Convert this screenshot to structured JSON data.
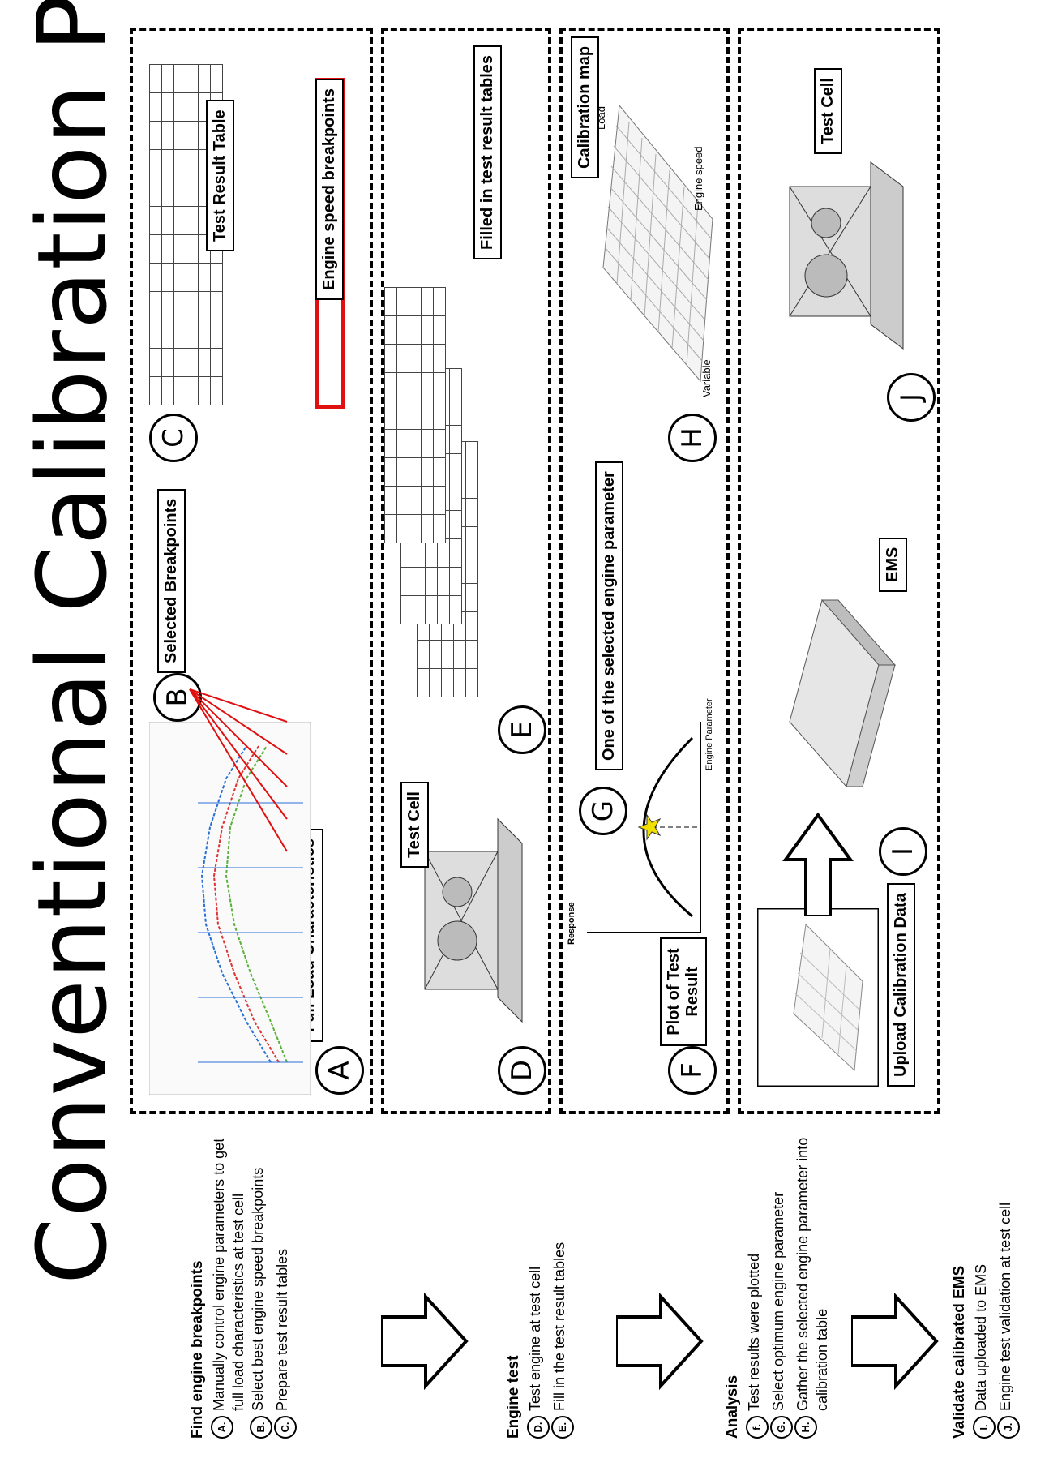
{
  "title": "Conventional Calibration Process",
  "steps": [
    {
      "heading": "Find engine  breakpoints",
      "items": [
        {
          "marker": "A.",
          "text": "Manually control engine parameters to get full load characteristics at test cell"
        },
        {
          "marker": "B.",
          "text": "Select best engine speed breakpoints"
        },
        {
          "marker": "C.",
          "text": "Prepare test result tables"
        }
      ]
    },
    {
      "heading": "Engine test",
      "items": [
        {
          "marker": "D.",
          "text": "Test engine at test cell"
        },
        {
          "marker": "E.",
          "text": "Fill in the test result tables"
        }
      ]
    },
    {
      "heading": "Analysis",
      "items": [
        {
          "marker": "f.",
          "text": "Test results were plotted"
        },
        {
          "marker": "G.",
          "text": "Select optimum engine parameter"
        },
        {
          "marker": "H.",
          "text": "Gather the selected engine parameter into calibration table"
        }
      ]
    },
    {
      "heading": "Validate calibrated EMS",
      "items": [
        {
          "marker": "I.",
          "text": "Data uploaded to EMS"
        },
        {
          "marker": "J.",
          "text": "Engine test validation at test cell"
        }
      ]
    }
  ],
  "panel1": {
    "circle_a": "A",
    "circle_b": "B",
    "circle_c": "C",
    "full_load_label": "Full Load Characteristics",
    "selected_breakpoints_label": "Selected Breakpoints",
    "engine_speed_breakpoints_label": "Engine speed breakpoints",
    "test_result_table_label": "Test Result Table"
  },
  "panel2": {
    "circle_d": "D",
    "circle_e": "E",
    "test_cell_label": "Test Cell",
    "filled_tables_label": "Filled in test result tables"
  },
  "panel3": {
    "circle_f": "F",
    "circle_g": "G",
    "circle_h": "H",
    "plot_label": "Plot of Test Result",
    "selected_param_label": "One of the selected engine parameter",
    "calibration_map_label": "Calibration map",
    "response_axis": "Response",
    "engine_param_axis": "Engine Parameter",
    "map_variable_axis": "Variable",
    "map_speed_axis": "Engine speed",
    "map_load_axis": "Load"
  },
  "panel4": {
    "circle_i": "I",
    "circle_j": "J",
    "upload_label": "Upload Calibration Data",
    "ems_label": "EMS",
    "test_cell_label": "Test Cell"
  },
  "colors": {
    "highlight_red": "#e01010",
    "curve_blue": "#2a6fd6",
    "curve_red": "#d33",
    "curve_green": "#5bb13a",
    "star_yellow": "#f2e000"
  }
}
